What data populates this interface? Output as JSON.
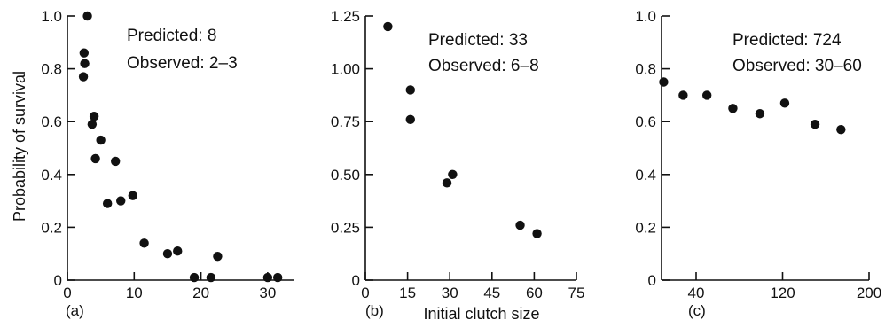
{
  "chart_data": [
    {
      "type": "scatter",
      "panel_label": "(a)",
      "ylabel": "Probability of survival",
      "xlabel": "",
      "xlim": [
        0,
        34
      ],
      "ylim": [
        0,
        1.0
      ],
      "x_ticks": [
        0,
        10,
        20,
        30
      ],
      "x_tick_labels": [
        "0",
        "10",
        "20",
        "30"
      ],
      "y_ticks": [
        0,
        0.2,
        0.4,
        0.6,
        0.8,
        1.0
      ],
      "y_tick_labels": [
        "0",
        "0.2",
        "0.4",
        "0.6",
        "0.8",
        "1.0"
      ],
      "annotations": [
        "Predicted: 8",
        "Observed: 2–3"
      ],
      "grid": false,
      "points": [
        [
          3,
          1.0
        ],
        [
          2.5,
          0.86
        ],
        [
          2.6,
          0.82
        ],
        [
          2.4,
          0.77
        ],
        [
          4,
          0.62
        ],
        [
          3.7,
          0.59
        ],
        [
          4.2,
          0.46
        ],
        [
          5,
          0.53
        ],
        [
          6,
          0.29
        ],
        [
          7.2,
          0.45
        ],
        [
          8,
          0.3
        ],
        [
          9.8,
          0.32
        ],
        [
          11.5,
          0.14
        ],
        [
          15,
          0.1
        ],
        [
          16.5,
          0.11
        ],
        [
          19,
          0.01
        ],
        [
          21.5,
          0.01
        ],
        [
          22.5,
          0.09
        ],
        [
          30,
          0.01
        ],
        [
          31.5,
          0.01
        ]
      ]
    },
    {
      "type": "scatter",
      "panel_label": "(b)",
      "ylabel": "",
      "xlabel": "Initial clutch size",
      "xlim": [
        0,
        75
      ],
      "ylim": [
        0,
        1.25
      ],
      "x_ticks": [
        0,
        15,
        30,
        45,
        60,
        75
      ],
      "x_tick_labels": [
        "0",
        "15",
        "30",
        "45",
        "60",
        "75"
      ],
      "y_ticks": [
        0,
        0.25,
        0.5,
        0.75,
        1.0,
        1.25
      ],
      "y_tick_labels": [
        "0",
        "0.25",
        "0.50",
        "0.75",
        "1.00",
        "1.25"
      ],
      "annotations": [
        "Predicted: 33",
        "Observed: 6–8"
      ],
      "grid": false,
      "points": [
        [
          8,
          1.2
        ],
        [
          16,
          0.9
        ],
        [
          16,
          0.76
        ],
        [
          29,
          0.46
        ],
        [
          31,
          0.5
        ],
        [
          55,
          0.26
        ],
        [
          61,
          0.22
        ]
      ]
    },
    {
      "type": "scatter",
      "panel_label": "(c)",
      "ylabel": "",
      "xlabel": "",
      "xlim": [
        8,
        200
      ],
      "ylim": [
        0,
        1.0
      ],
      "x_ticks": [
        40,
        120,
        200
      ],
      "x_tick_labels": [
        "40",
        "120",
        "200"
      ],
      "y_ticks": [
        0,
        0.2,
        0.4,
        0.6,
        0.8,
        1.0
      ],
      "y_tick_labels": [
        "0",
        "0.2",
        "0.4",
        "0.6",
        "0.8",
        "1.0"
      ],
      "annotations": [
        "Predicted: 724",
        "Observed: 30–60"
      ],
      "grid": false,
      "points": [
        [
          10,
          0.75
        ],
        [
          28,
          0.7
        ],
        [
          50,
          0.7
        ],
        [
          74,
          0.65
        ],
        [
          99,
          0.63
        ],
        [
          122,
          0.67
        ],
        [
          150,
          0.59
        ],
        [
          174,
          0.57
        ]
      ]
    }
  ]
}
